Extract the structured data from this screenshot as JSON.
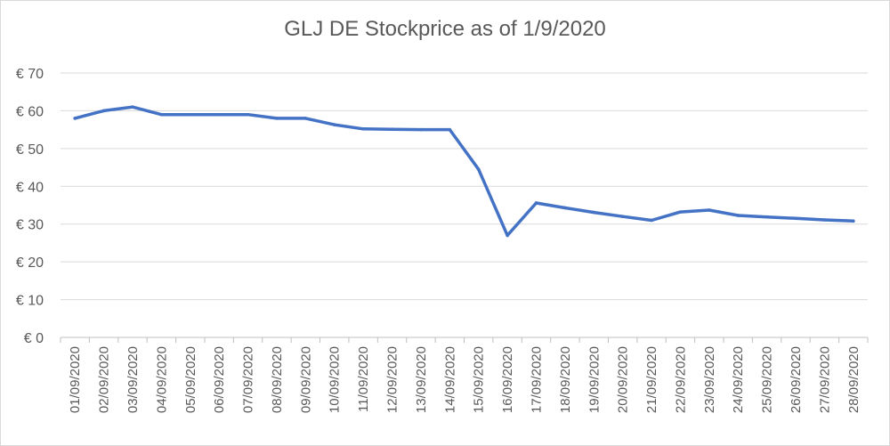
{
  "chart_data": {
    "type": "line",
    "title": "GLJ DE Stockprice as of 1/9/2020",
    "xlabel": "",
    "ylabel": "",
    "categories": [
      "01/09/2020",
      "02/09/2020",
      "03/09/2020",
      "04/09/2020",
      "05/09/2020",
      "06/09/2020",
      "07/09/2020",
      "08/09/2020",
      "09/09/2020",
      "10/09/2020",
      "11/09/2020",
      "12/09/2020",
      "13/09/2020",
      "14/09/2020",
      "15/09/2020",
      "16/09/2020",
      "17/09/2020",
      "18/09/2020",
      "19/09/2020",
      "20/09/2020",
      "21/09/2020",
      "22/09/2020",
      "23/09/2020",
      "24/09/2020",
      "25/09/2020",
      "26/09/2020",
      "27/09/2020",
      "28/09/2020"
    ],
    "series": [
      {
        "values": [
          58,
          60,
          61,
          59,
          59,
          59,
          59,
          58,
          58,
          56.3,
          55.2,
          55.1,
          55,
          55,
          44.5,
          27,
          35.6,
          34.3,
          33.1,
          32,
          31,
          33.2,
          33.7,
          32.3,
          31.9,
          31.5,
          31.1,
          30.8
        ]
      }
    ],
    "yticks": [
      "€ 0",
      "€ 10",
      "€ 20",
      "€ 30",
      "€ 40",
      "€ 50",
      "€ 60",
      "€ 70"
    ],
    "ylim": [
      0,
      70
    ],
    "grid": true,
    "legend": "none",
    "line_color": "#4472c4",
    "grid_color": "#d9d9d9"
  }
}
